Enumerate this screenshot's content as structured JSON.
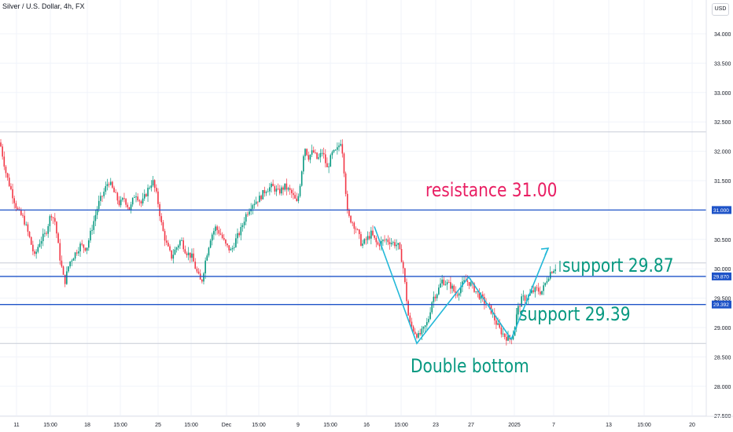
{
  "header": {
    "symbol": "Silver / U.S. Dollar, 4h, FX",
    "currency": "USD"
  },
  "chart_data": {
    "type": "candlestick",
    "title": "Silver / U.S. Dollar, 4h, FX",
    "ylim": [
      27.5,
      34.5
    ],
    "y_ticks": [
      "34.000",
      "33.500",
      "33.000",
      "32.500",
      "32.000",
      "31.500",
      "31.000",
      "30.500",
      "30.000",
      "29.500",
      "29.000",
      "28.500",
      "28.000",
      "27.500"
    ],
    "x_ticks": [
      "11",
      "15:00",
      "18",
      "15:00",
      "25",
      "15:00",
      "Dec",
      "15:00",
      "9",
      "15:00",
      "16",
      "15:00",
      "23",
      "27",
      "2025",
      "7",
      "13",
      "15:00",
      "20"
    ],
    "levels": [
      {
        "name": "resistance",
        "value": 31.0,
        "label": "31.000",
        "color": "#1e53c8"
      },
      {
        "name": "support_upper",
        "value": 29.87,
        "label": "29.870",
        "color": "#1e53c8"
      },
      {
        "name": "support_lower",
        "value": 29.392,
        "label": "29.392",
        "color": "#1e53c8"
      }
    ],
    "reference_levels": [
      32.33,
      30.1,
      28.73
    ],
    "path_points": [
      [
        0,
        32.15
      ],
      [
        3,
        31.95
      ],
      [
        8,
        31.6
      ],
      [
        15,
        31.3
      ],
      [
        22,
        31.0
      ],
      [
        30,
        30.85
      ],
      [
        37,
        30.55
      ],
      [
        44,
        30.2
      ],
      [
        50,
        30.45
      ],
      [
        58,
        30.6
      ],
      [
        65,
        30.95
      ],
      [
        70,
        30.8
      ],
      [
        76,
        30.2
      ],
      [
        82,
        29.75
      ],
      [
        88,
        30.1
      ],
      [
        95,
        30.25
      ],
      [
        102,
        30.4
      ],
      [
        110,
        30.35
      ],
      [
        118,
        30.75
      ],
      [
        125,
        31.1
      ],
      [
        132,
        31.3
      ],
      [
        138,
        31.5
      ],
      [
        145,
        31.3
      ],
      [
        152,
        31.1
      ],
      [
        158,
        31.2
      ],
      [
        165,
        31.0
      ],
      [
        172,
        31.3
      ],
      [
        180,
        31.1
      ],
      [
        188,
        31.35
      ],
      [
        194,
        31.5
      ],
      [
        200,
        31.2
      ],
      [
        206,
        30.7
      ],
      [
        212,
        30.4
      ],
      [
        218,
        30.2
      ],
      [
        224,
        30.35
      ],
      [
        230,
        30.5
      ],
      [
        236,
        30.3
      ],
      [
        244,
        30.2
      ],
      [
        250,
        29.95
      ],
      [
        256,
        29.75
      ],
      [
        262,
        30.2
      ],
      [
        268,
        30.55
      ],
      [
        274,
        30.7
      ],
      [
        280,
        30.6
      ],
      [
        287,
        30.4
      ],
      [
        294,
        30.3
      ],
      [
        300,
        30.5
      ],
      [
        306,
        30.65
      ],
      [
        312,
        30.9
      ],
      [
        320,
        31.1
      ],
      [
        330,
        31.2
      ],
      [
        338,
        31.35
      ],
      [
        346,
        31.4
      ],
      [
        354,
        31.3
      ],
      [
        362,
        31.4
      ],
      [
        370,
        31.3
      ],
      [
        378,
        31.1
      ],
      [
        383,
        31.6
      ],
      [
        387,
        32.1
      ],
      [
        392,
        31.9
      ],
      [
        398,
        32.0
      ],
      [
        404,
        31.85
      ],
      [
        410,
        32.0
      ],
      [
        416,
        31.7
      ],
      [
        422,
        31.95
      ],
      [
        428,
        32.0
      ],
      [
        434,
        32.2
      ],
      [
        438,
        31.6
      ],
      [
        442,
        30.9
      ],
      [
        448,
        30.8
      ],
      [
        454,
        30.65
      ],
      [
        460,
        30.4
      ],
      [
        466,
        30.5
      ],
      [
        472,
        30.6
      ],
      [
        480,
        30.4
      ],
      [
        490,
        30.5
      ],
      [
        498,
        30.45
      ],
      [
        506,
        30.4
      ],
      [
        512,
        30.1
      ],
      [
        516,
        29.6
      ],
      [
        520,
        29.1
      ],
      [
        526,
        28.95
      ],
      [
        532,
        28.85
      ],
      [
        538,
        28.95
      ],
      [
        544,
        29.1
      ],
      [
        550,
        29.5
      ],
      [
        556,
        29.6
      ],
      [
        562,
        29.8
      ],
      [
        568,
        29.75
      ],
      [
        574,
        29.7
      ],
      [
        580,
        29.55
      ],
      [
        586,
        29.7
      ],
      [
        592,
        29.8
      ],
      [
        598,
        29.75
      ],
      [
        606,
        29.6
      ],
      [
        612,
        29.5
      ],
      [
        618,
        29.4
      ],
      [
        624,
        29.3
      ],
      [
        630,
        29.1
      ],
      [
        636,
        28.95
      ],
      [
        642,
        28.85
      ],
      [
        648,
        28.8
      ],
      [
        653,
        28.9
      ],
      [
        658,
        29.3
      ],
      [
        664,
        29.5
      ],
      [
        670,
        29.5
      ],
      [
        676,
        29.6
      ],
      [
        682,
        29.65
      ],
      [
        688,
        29.6
      ],
      [
        692,
        29.7
      ],
      [
        696,
        29.85
      ],
      [
        700,
        29.95
      ],
      [
        704,
        30.0
      ],
      [
        708,
        30.05
      ]
    ],
    "pattern_line": [
      [
        476,
        30.72
      ],
      [
        530,
        28.73
      ],
      [
        596,
        29.86
      ],
      [
        650,
        28.8
      ],
      [
        697,
        30.35
      ]
    ],
    "annotations": [
      {
        "name": "resistance",
        "text": "resistance 31.00"
      },
      {
        "name": "support_upper",
        "text": "support 29.87"
      },
      {
        "name": "support_lower",
        "text": "support 29.39"
      },
      {
        "name": "pattern",
        "text": "Double bottom"
      }
    ],
    "colors": {
      "up": "#089981",
      "down": "#f23645",
      "pattern": "#22b8d8",
      "level": "#1e53c8",
      "resistance_text": "#e91e63",
      "support_text": "#089981"
    },
    "grid": true,
    "legend": "none"
  }
}
